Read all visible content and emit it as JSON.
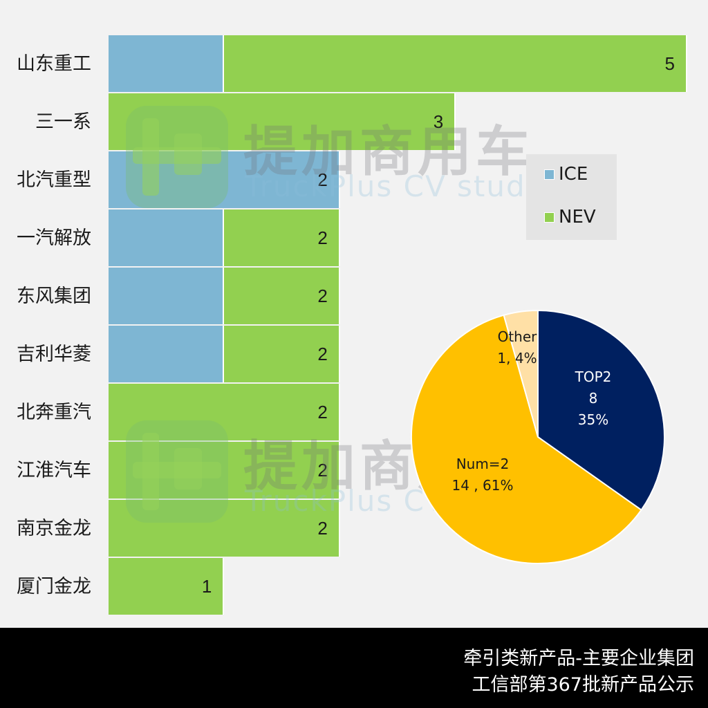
{
  "chart_data": [
    {
      "type": "bar",
      "orientation": "horizontal",
      "stacked": true,
      "title": "",
      "categories": [
        "山东重工",
        "三一系",
        "北汽重型",
        "一汽解放",
        "东风集团",
        "吉利华菱",
        "北奔重汽",
        "江淮汽车",
        "南京金龙",
        "厦门金龙"
      ],
      "series": [
        {
          "name": "ICE",
          "color": "#7eb6d3",
          "values": [
            1,
            0,
            2,
            1,
            1,
            1,
            0,
            0,
            0,
            0
          ]
        },
        {
          "name": "NEV",
          "color": "#92d050",
          "values": [
            4,
            3,
            0,
            1,
            1,
            1,
            2,
            2,
            2,
            1
          ]
        }
      ],
      "totals": [
        5,
        3,
        2,
        2,
        2,
        2,
        2,
        2,
        2,
        1
      ],
      "xlabel": "",
      "ylabel": "",
      "xlim": [
        0,
        5
      ],
      "grid": false,
      "legend_position": "right"
    },
    {
      "type": "pie",
      "title": "",
      "categories": [
        "TOP2",
        "Num=2",
        "Other"
      ],
      "values": [
        8,
        14,
        1
      ],
      "percentages": [
        35,
        61,
        4
      ],
      "colors": [
        "#002060",
        "#ffc000",
        "#ffe0a6"
      ]
    }
  ],
  "bars": {
    "rows": [
      {
        "label": "山东重工",
        "ice": 1,
        "nev": 4,
        "value_label": "5"
      },
      {
        "label": "三一系",
        "ice": 0,
        "nev": 3,
        "value_label": "3"
      },
      {
        "label": "北汽重型",
        "ice": 2,
        "nev": 0,
        "value_label": "2"
      },
      {
        "label": "一汽解放",
        "ice": 1,
        "nev": 1,
        "value_label": "2"
      },
      {
        "label": "东风集团",
        "ice": 1,
        "nev": 1,
        "value_label": "2"
      },
      {
        "label": "吉利华菱",
        "ice": 1,
        "nev": 1,
        "value_label": "2"
      },
      {
        "label": "北奔重汽",
        "ice": 0,
        "nev": 2,
        "value_label": "2"
      },
      {
        "label": "江淮汽车",
        "ice": 0,
        "nev": 2,
        "value_label": "2"
      },
      {
        "label": "南京金龙",
        "ice": 0,
        "nev": 2,
        "value_label": "2"
      },
      {
        "label": "厦门金龙",
        "ice": 0,
        "nev": 1,
        "value_label": "1"
      }
    ]
  },
  "legend": {
    "items": [
      {
        "label": "ICE",
        "color": "#7eb6d3"
      },
      {
        "label": "NEV",
        "color": "#92d050"
      }
    ]
  },
  "pie": {
    "slices": [
      {
        "name": "TOP2",
        "value_line": "8",
        "pct_line": "35%",
        "color": "#002060"
      },
      {
        "name": "Num=2",
        "value_line": "14 , 61%",
        "color": "#ffc000"
      },
      {
        "name": "Other",
        "value_line": "1, 4%",
        "color": "#ffe0a6"
      }
    ]
  },
  "watermark": {
    "cn": "提加商用车",
    "en": "TruckPlus CV studio"
  },
  "footer": {
    "line1": "牵引类新产品-主要企业集团",
    "line2": "工信部第367批新产品公示"
  }
}
